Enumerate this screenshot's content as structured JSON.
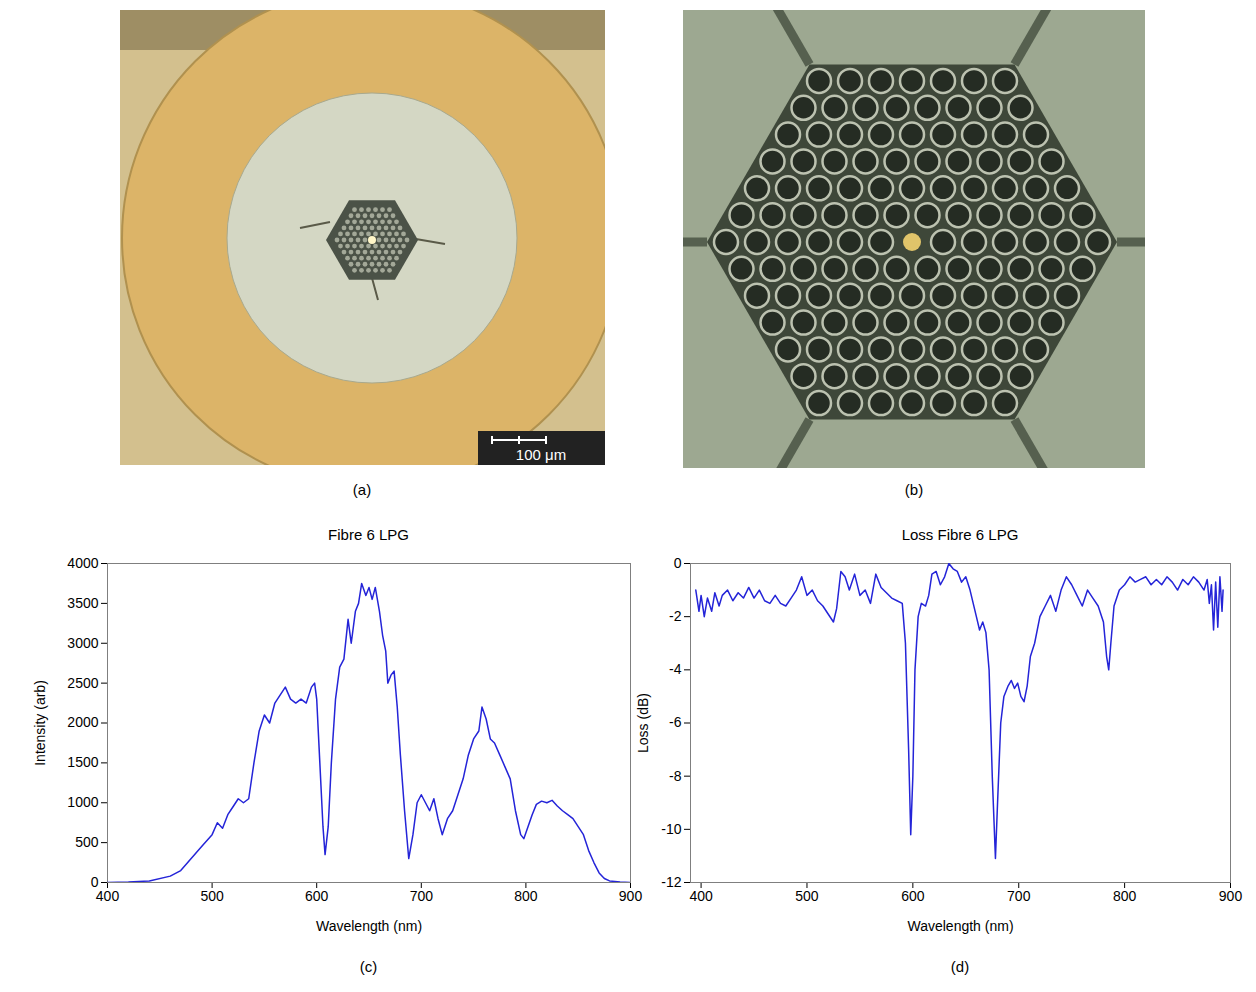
{
  "images": [
    {
      "panel": "(a)",
      "scale_bar": "100 μm"
    },
    {
      "panel": "(b)"
    }
  ],
  "chart_data": [
    {
      "type": "line",
      "panel": "(c)",
      "title": "Fibre 6 LPG",
      "x_label": "Wavelength (nm)",
      "y_label": "Intensity (arb)",
      "color": "#2424d8",
      "xlim": [
        400,
        900
      ],
      "xticks": [
        400,
        500,
        600,
        700,
        800,
        900
      ],
      "ylim": [
        0,
        4000
      ],
      "yticks": [
        0,
        500,
        1000,
        1500,
        2000,
        2500,
        3000,
        3500,
        4000
      ],
      "x": [
        400,
        420,
        440,
        460,
        470,
        480,
        490,
        500,
        505,
        510,
        515,
        520,
        525,
        530,
        535,
        540,
        545,
        550,
        555,
        560,
        565,
        570,
        575,
        580,
        585,
        590,
        595,
        598,
        600,
        603,
        606,
        608,
        611,
        614,
        618,
        622,
        626,
        630,
        633,
        637,
        640,
        643,
        647,
        650,
        653,
        656,
        660,
        663,
        666,
        668,
        671,
        674,
        677,
        680,
        684,
        688,
        692,
        696,
        700,
        704,
        708,
        712,
        716,
        720,
        725,
        730,
        735,
        740,
        745,
        750,
        755,
        758,
        762,
        766,
        770,
        775,
        780,
        785,
        790,
        795,
        798,
        802,
        806,
        810,
        815,
        820,
        825,
        830,
        835,
        840,
        845,
        850,
        855,
        860,
        865,
        870,
        875,
        880,
        890,
        900
      ],
      "values": [
        0,
        5,
        20,
        80,
        150,
        300,
        450,
        600,
        750,
        680,
        850,
        950,
        1050,
        1000,
        1050,
        1500,
        1900,
        2100,
        2000,
        2250,
        2350,
        2450,
        2300,
        2250,
        2300,
        2250,
        2450,
        2500,
        2300,
        1500,
        700,
        350,
        700,
        1500,
        2300,
        2700,
        2800,
        3300,
        3000,
        3400,
        3500,
        3750,
        3600,
        3700,
        3550,
        3700,
        3400,
        3100,
        2900,
        2500,
        2600,
        2650,
        2200,
        1600,
        900,
        300,
        600,
        1000,
        1100,
        1000,
        900,
        1050,
        800,
        600,
        800,
        900,
        1100,
        1300,
        1600,
        1800,
        1900,
        2200,
        2050,
        1800,
        1750,
        1600,
        1450,
        1300,
        900,
        600,
        550,
        700,
        850,
        980,
        1020,
        1000,
        1030,
        960,
        900,
        850,
        800,
        700,
        600,
        400,
        250,
        120,
        50,
        20,
        5,
        0
      ]
    },
    {
      "type": "line",
      "panel": "(d)",
      "title": "Loss Fibre 6 LPG",
      "x_label": "Wavelength (nm)",
      "y_label": "Loss (dB)",
      "color": "#2424d8",
      "xlim": [
        390,
        900
      ],
      "xticks": [
        400,
        500,
        600,
        700,
        800,
        900
      ],
      "ylim": [
        -12,
        0
      ],
      "yticks": [
        -12,
        -10,
        -8,
        -6,
        -4,
        -2,
        0
      ],
      "x": [
        395,
        398,
        400,
        403,
        406,
        410,
        413,
        417,
        420,
        425,
        430,
        435,
        440,
        445,
        450,
        455,
        460,
        465,
        470,
        475,
        480,
        485,
        490,
        495,
        500,
        505,
        510,
        515,
        520,
        525,
        528,
        532,
        536,
        540,
        545,
        550,
        555,
        560,
        565,
        570,
        575,
        580,
        585,
        590,
        593,
        596,
        598,
        600,
        602,
        605,
        608,
        612,
        615,
        618,
        622,
        626,
        630,
        634,
        638,
        642,
        646,
        650,
        654,
        657,
        660,
        663,
        666,
        669,
        672,
        675,
        678,
        680,
        683,
        686,
        690,
        693,
        696,
        699,
        702,
        705,
        708,
        711,
        715,
        720,
        725,
        730,
        735,
        740,
        745,
        750,
        755,
        760,
        765,
        770,
        775,
        780,
        783,
        785,
        787,
        790,
        795,
        800,
        805,
        810,
        815,
        820,
        825,
        830,
        835,
        840,
        845,
        850,
        855,
        860,
        865,
        870,
        875,
        878,
        880,
        882,
        884,
        886,
        888,
        890,
        892,
        893
      ],
      "values": [
        -1.0,
        -1.8,
        -1.2,
        -2.0,
        -1.3,
        -1.8,
        -1.1,
        -1.6,
        -1.2,
        -1.0,
        -1.4,
        -1.1,
        -1.3,
        -0.9,
        -1.3,
        -1.0,
        -1.4,
        -1.5,
        -1.2,
        -1.5,
        -1.6,
        -1.3,
        -1.0,
        -0.5,
        -1.2,
        -1.0,
        -1.4,
        -1.6,
        -1.9,
        -2.2,
        -1.7,
        -0.3,
        -0.5,
        -1.0,
        -0.4,
        -1.2,
        -1.0,
        -1.5,
        -0.4,
        -0.9,
        -1.1,
        -1.3,
        -1.4,
        -1.5,
        -3.0,
        -7.0,
        -10.2,
        -8.0,
        -4.0,
        -2.0,
        -1.5,
        -1.6,
        -1.2,
        -0.4,
        -0.3,
        -0.8,
        -0.5,
        0,
        -0.2,
        -0.3,
        -0.7,
        -0.5,
        -1.0,
        -1.5,
        -2.0,
        -2.5,
        -2.2,
        -2.6,
        -4.0,
        -8.0,
        -11.1,
        -9.0,
        -6.0,
        -5.0,
        -4.6,
        -4.4,
        -4.7,
        -4.5,
        -5.0,
        -5.2,
        -4.6,
        -3.5,
        -3.0,
        -2.0,
        -1.6,
        -1.2,
        -1.8,
        -1.0,
        -0.5,
        -0.8,
        -1.2,
        -1.6,
        -1.0,
        -1.3,
        -1.6,
        -2.2,
        -3.5,
        -4.0,
        -3.0,
        -1.6,
        -1.0,
        -0.8,
        -0.5,
        -0.7,
        -0.6,
        -0.5,
        -0.8,
        -0.6,
        -0.8,
        -0.5,
        -0.7,
        -1.0,
        -0.6,
        -0.8,
        -0.5,
        -0.7,
        -1.0,
        -0.6,
        -1.5,
        -0.8,
        -2.5,
        -0.7,
        -2.4,
        -0.5,
        -1.8,
        -1.0
      ]
    }
  ]
}
